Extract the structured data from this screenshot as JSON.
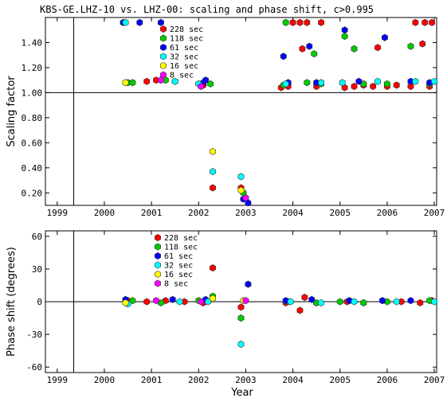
{
  "chart_data": {
    "title": "KBS-GE.LHZ-10 vs. LHZ-00: scaling and phase shift, c>0.995",
    "xlabel": "Year",
    "x_ticks": [
      "1999",
      "2000",
      "2001",
      "2002",
      "2003",
      "2004",
      "2005",
      "2006",
      "2007"
    ],
    "xlim": [
      1998.75,
      2007.05
    ],
    "series_colors": {
      "228 sec": "#ff0000",
      "118 sec": "#00cc00",
      "61 sec": "#0000ff",
      "32 sec": "#00ffff",
      "16 sec": "#ffff00",
      "8 sec": "#ff00ff"
    },
    "panels": [
      {
        "type": "scatter",
        "ylabel": "Scaling factor",
        "ylim": [
          0.1,
          1.6
        ],
        "y_ticks": [
          "0.20",
          "0.40",
          "0.60",
          "0.80",
          "1.00",
          "1.20",
          "1.40"
        ],
        "reference_y": 1.0,
        "legend": [
          "228 sec",
          "118 sec",
          "61 sec",
          "32 sec",
          "16 sec",
          "8 sec"
        ],
        "series": [
          {
            "name": "228 sec",
            "points": [
              [
                2000.9,
                1.09
              ],
              [
                2001.1,
                1.1
              ],
              [
                2001.5,
                1.09
              ],
              [
                2002.1,
                1.06
              ],
              [
                2002.3,
                0.24
              ],
              [
                2002.9,
                0.24
              ],
              [
                2003.75,
                1.04
              ],
              [
                2003.9,
                1.05
              ],
              [
                2004.0,
                1.56
              ],
              [
                2004.15,
                1.56
              ],
              [
                2004.2,
                1.35
              ],
              [
                2004.3,
                1.56
              ],
              [
                2004.5,
                1.05
              ],
              [
                2004.6,
                1.56
              ],
              [
                2005.1,
                1.04
              ],
              [
                2005.3,
                1.05
              ],
              [
                2005.5,
                1.06
              ],
              [
                2005.7,
                1.05
              ],
              [
                2005.8,
                1.36
              ],
              [
                2006.0,
                1.05
              ],
              [
                2006.2,
                1.06
              ],
              [
                2006.5,
                1.05
              ],
              [
                2006.6,
                1.56
              ],
              [
                2006.75,
                1.39
              ],
              [
                2006.8,
                1.56
              ],
              [
                2006.9,
                1.05
              ],
              [
                2006.95,
                1.56
              ]
            ]
          },
          {
            "name": "118 sec",
            "points": [
              [
                2000.5,
                1.08
              ],
              [
                2000.6,
                1.08
              ],
              [
                2001.3,
                1.1
              ],
              [
                2002.0,
                1.07
              ],
              [
                2002.25,
                1.07
              ],
              [
                2002.95,
                0.2
              ],
              [
                2003.8,
                1.06
              ],
              [
                2003.85,
                1.56
              ],
              [
                2004.3,
                1.08
              ],
              [
                2004.45,
                1.31
              ],
              [
                2004.6,
                1.07
              ],
              [
                2005.1,
                1.45
              ],
              [
                2005.3,
                1.35
              ],
              [
                2005.5,
                1.07
              ],
              [
                2006.0,
                1.07
              ],
              [
                2006.5,
                1.37
              ],
              [
                2006.9,
                1.07
              ]
            ]
          },
          {
            "name": "61 sec",
            "points": [
              [
                2000.4,
                1.56
              ],
              [
                2000.75,
                1.56
              ],
              [
                2001.2,
                1.56
              ],
              [
                2002.1,
                1.08
              ],
              [
                2002.15,
                1.1
              ],
              [
                2002.95,
                0.15
              ],
              [
                2003.05,
                0.12
              ],
              [
                2003.8,
                1.29
              ],
              [
                2003.9,
                1.08
              ],
              [
                2004.35,
                1.37
              ],
              [
                2004.5,
                1.08
              ],
              [
                2005.1,
                1.5
              ],
              [
                2005.4,
                1.09
              ],
              [
                2005.95,
                1.44
              ],
              [
                2006.5,
                1.09
              ],
              [
                2006.9,
                1.08
              ]
            ]
          },
          {
            "name": "32 sec",
            "points": [
              [
                2000.45,
                1.56
              ],
              [
                2001.5,
                1.09
              ],
              [
                2002.0,
                1.07
              ],
              [
                2002.3,
                0.37
              ],
              [
                2002.9,
                0.33
              ],
              [
                2003.85,
                1.07
              ],
              [
                2004.6,
                1.08
              ],
              [
                2005.05,
                1.08
              ],
              [
                2005.8,
                1.09
              ],
              [
                2006.6,
                1.09
              ],
              [
                2007.0,
                1.09
              ]
            ]
          },
          {
            "name": "16 sec",
            "points": [
              [
                2000.45,
                1.08
              ],
              [
                2002.3,
                0.53
              ],
              [
                2002.9,
                0.22
              ]
            ]
          },
          {
            "name": "8 sec",
            "points": [
              [
                2001.2,
                1.1
              ],
              [
                2002.05,
                1.05
              ],
              [
                2003.0,
                0.16
              ]
            ]
          }
        ]
      },
      {
        "type": "scatter",
        "ylabel": "Phase shift (degrees)",
        "ylim": [
          -65,
          65
        ],
        "y_ticks": [
          "-60",
          "-30",
          "0",
          "30",
          "60"
        ],
        "reference_y": 0,
        "legend": [
          "228 sec",
          "118 sec",
          "61 sec",
          "32 sec",
          "16 sec",
          "8 sec"
        ],
        "series": [
          {
            "name": "228 sec",
            "points": [
              [
                2000.5,
                1
              ],
              [
                2000.9,
                0
              ],
              [
                2001.3,
                1
              ],
              [
                2001.7,
                0
              ],
              [
                2002.1,
                -1
              ],
              [
                2002.3,
                31
              ],
              [
                2002.9,
                -5
              ],
              [
                2003.85,
                -1
              ],
              [
                2004.15,
                -8
              ],
              [
                2004.25,
                4
              ],
              [
                2004.5,
                -1
              ],
              [
                2005.15,
                0
              ],
              [
                2005.5,
                -1
              ],
              [
                2005.9,
                1
              ],
              [
                2006.3,
                0
              ],
              [
                2006.7,
                -1
              ],
              [
                2006.95,
                1
              ]
            ]
          },
          {
            "name": "118 sec",
            "points": [
              [
                2000.6,
                1
              ],
              [
                2001.2,
                -1
              ],
              [
                2002.0,
                1
              ],
              [
                2002.3,
                5
              ],
              [
                2002.9,
                -15
              ],
              [
                2003.9,
                0
              ],
              [
                2004.5,
                -1
              ],
              [
                2005.0,
                0
              ],
              [
                2005.5,
                -1
              ],
              [
                2006.0,
                0
              ],
              [
                2006.9,
                1
              ]
            ]
          },
          {
            "name": "61 sec",
            "points": [
              [
                2000.45,
                2
              ],
              [
                2001.45,
                2
              ],
              [
                2002.15,
                2
              ],
              [
                2003.05,
                16
              ],
              [
                2003.85,
                1
              ],
              [
                2004.4,
                2
              ],
              [
                2005.2,
                1
              ],
              [
                2005.9,
                1
              ],
              [
                2006.5,
                1
              ]
            ]
          },
          {
            "name": "32 sec",
            "points": [
              [
                2000.5,
                -2
              ],
              [
                2001.6,
                0
              ],
              [
                2002.2,
                0
              ],
              [
                2002.9,
                -39
              ],
              [
                2003.95,
                0
              ],
              [
                2004.6,
                -1
              ],
              [
                2005.3,
                0
              ],
              [
                2006.2,
                0
              ],
              [
                2007.0,
                0
              ]
            ]
          },
          {
            "name": "16 sec",
            "points": [
              [
                2000.45,
                -1
              ],
              [
                2002.3,
                3
              ],
              [
                2002.95,
                1
              ]
            ]
          },
          {
            "name": "8 sec",
            "points": [
              [
                2001.1,
                1
              ],
              [
                2002.05,
                0
              ],
              [
                2003.0,
                1
              ]
            ]
          }
        ]
      }
    ]
  }
}
